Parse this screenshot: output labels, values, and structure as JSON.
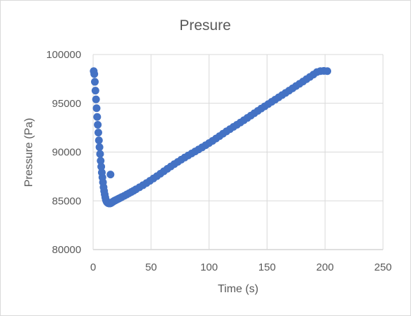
{
  "chart_data": {
    "type": "scatter",
    "title": "Presure",
    "xlabel": "Time (s)",
    "ylabel": "Pressure (Pa)",
    "xlim": [
      0,
      250
    ],
    "ylim": [
      80000,
      100000
    ],
    "x_ticks": [
      0,
      50,
      100,
      150,
      200,
      250
    ],
    "y_ticks": [
      80000,
      85000,
      90000,
      95000,
      100000
    ],
    "grid": true,
    "legend": "none",
    "marker_color": "#4472c4",
    "series": [
      {
        "x": [
          0.5,
          1,
          1.5,
          2,
          2.5,
          3,
          3.5,
          4,
          4.5,
          5,
          5.5,
          6,
          6.5,
          7,
          7.5,
          8,
          8.5,
          9,
          9.5,
          10,
          10.5,
          11,
          11.5,
          12,
          12.5,
          13,
          13.5,
          14,
          14.5,
          15,
          15.5,
          16,
          16.5,
          17,
          17.5,
          18,
          18.5,
          19,
          19.5,
          20,
          21,
          22,
          23,
          24,
          25,
          27,
          29,
          31,
          33,
          35,
          37,
          40,
          43,
          46,
          49,
          52,
          55,
          58,
          61,
          64,
          67,
          70,
          73,
          76,
          79,
          82,
          85,
          88,
          91,
          94,
          97,
          100,
          103,
          106,
          109,
          112,
          115,
          118,
          121,
          124,
          127,
          130,
          133,
          136,
          139,
          142,
          145,
          148,
          151,
          154,
          157,
          160,
          163,
          166,
          169,
          172,
          175,
          178,
          181,
          184,
          187,
          190,
          193,
          196,
          199,
          202,
          15
        ],
        "y": [
          98300,
          98000,
          97200,
          96300,
          95400,
          94500,
          93600,
          92800,
          92000,
          91200,
          90500,
          89800,
          89100,
          88500,
          87900,
          87400,
          86900,
          86400,
          86000,
          85650,
          85350,
          85100,
          84950,
          84850,
          84800,
          84760,
          84740,
          84730,
          84730,
          84750,
          84780,
          84820,
          84860,
          84900,
          84940,
          84980,
          85010,
          85040,
          85070,
          85100,
          85160,
          85220,
          85280,
          85340,
          85400,
          85520,
          85650,
          85780,
          85910,
          86040,
          86180,
          86390,
          86600,
          86820,
          87050,
          87290,
          87530,
          87780,
          88030,
          88280,
          88520,
          88760,
          88990,
          89220,
          89440,
          89650,
          89860,
          90060,
          90270,
          90480,
          90700,
          90920,
          91150,
          91390,
          91630,
          91880,
          92120,
          92350,
          92580,
          92800,
          93030,
          93260,
          93500,
          93740,
          93980,
          94220,
          94460,
          94690,
          94920,
          95150,
          95380,
          95610,
          95840,
          96070,
          96300,
          96530,
          96770,
          97000,
          97230,
          97470,
          97710,
          97950,
          98200,
          98300,
          98320,
          98300,
          87700
        ]
      }
    ]
  }
}
